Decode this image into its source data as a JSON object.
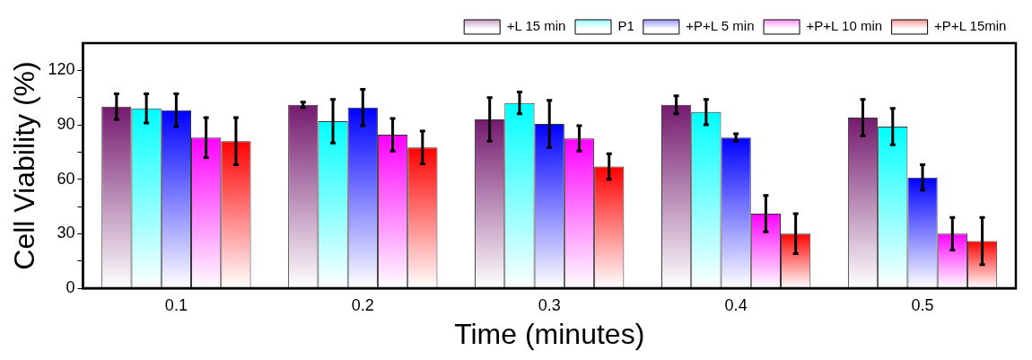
{
  "chart_data": {
    "type": "bar",
    "xlabel": "Time (minutes)",
    "ylabel": "Cell Viability (%)",
    "categories": [
      "0.1",
      "0.2",
      "0.3",
      "0.4",
      "0.5"
    ],
    "series": [
      {
        "name": "+L 15 min",
        "color": "#741a6e",
        "values": [
          100,
          101,
          93,
          101,
          94
        ],
        "errors": [
          7,
          1.5,
          12,
          5,
          10
        ]
      },
      {
        "name": "P1",
        "color": "#00ffff",
        "values": [
          99,
          92,
          102,
          97,
          89
        ],
        "errors": [
          8,
          12,
          6,
          7,
          10
        ]
      },
      {
        "name": "+P+L 5 min",
        "color": "#0000ff",
        "values": [
          98,
          99.5,
          90.5,
          83,
          61
        ],
        "errors": [
          9,
          10,
          13,
          2,
          7
        ]
      },
      {
        "name": "+P+L 10 min",
        "color": "#ff00ff",
        "values": [
          83,
          84.5,
          82.5,
          41,
          30
        ],
        "errors": [
          11,
          9,
          7,
          10,
          9
        ]
      },
      {
        "name": "+P+L 15min",
        "color": "#ff0000",
        "values": [
          81,
          77.5,
          67,
          30,
          26
        ],
        "errors": [
          13,
          9,
          7,
          11,
          13
        ]
      }
    ],
    "ylim": [
      0,
      135
    ],
    "yticks": [
      0,
      {
        "value": 15,
        "label": null
      },
      30,
      {
        "value": 45,
        "label": null
      },
      60,
      {
        "value": 75,
        "label": null
      },
      90,
      {
        "value": 105,
        "label": null
      },
      120
    ],
    "legend": "top right"
  }
}
